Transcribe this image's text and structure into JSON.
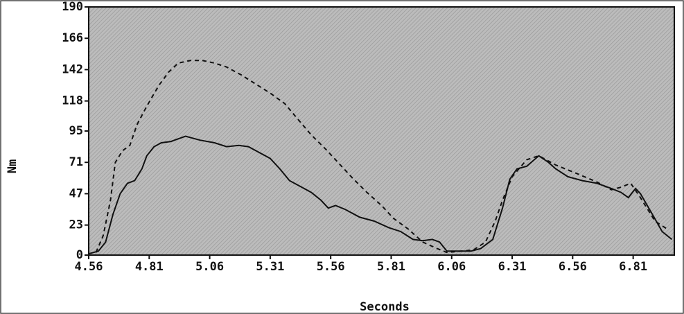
{
  "chart_data": {
    "type": "line",
    "xlabel": "Seconds",
    "ylabel": "Nm",
    "xlim": [
      4.56,
      6.98
    ],
    "xticks": [
      4.56,
      4.81,
      5.06,
      5.31,
      5.56,
      5.81,
      6.06,
      6.31,
      6.56,
      6.81
    ],
    "ylim": [
      0,
      190
    ],
    "yticks": [
      0,
      23,
      47,
      71,
      95,
      118,
      142,
      166,
      190
    ],
    "series": [
      {
        "color": "#111111",
        "dash": false,
        "x": [
          4.56,
          4.6,
          4.63,
          4.66,
          4.69,
          4.72,
          4.75,
          4.78,
          4.8,
          4.83,
          4.86,
          4.9,
          4.96,
          5.02,
          5.08,
          5.13,
          5.18,
          5.22,
          5.26,
          5.31,
          5.35,
          5.39,
          5.44,
          5.48,
          5.52,
          5.55,
          5.58,
          5.62,
          5.68,
          5.74,
          5.8,
          5.85,
          5.9,
          5.94,
          5.98,
          6.01,
          6.04,
          6.08,
          6.14,
          6.18,
          6.23,
          6.27,
          6.3,
          6.33,
          6.37,
          6.42,
          6.46,
          6.49,
          6.54,
          6.6,
          6.66,
          6.72,
          6.76,
          6.79,
          6.82,
          6.84,
          6.89,
          6.93,
          6.97
        ],
        "values": [
          1,
          3,
          10,
          31,
          47,
          55,
          57,
          66,
          76,
          83,
          86,
          87,
          91,
          88,
          86,
          83,
          84,
          83,
          79,
          74,
          66,
          57,
          52,
          48,
          42,
          36,
          38,
          35,
          29,
          26,
          21,
          18,
          12,
          11,
          12,
          10,
          3,
          3,
          3,
          5,
          12,
          36,
          58,
          66,
          68,
          76,
          71,
          66,
          60,
          57,
          55,
          51,
          48,
          44,
          51,
          47,
          31,
          18,
          12
        ]
      },
      {
        "color": "#111111",
        "dash": true,
        "x": [
          4.59,
          4.62,
          4.65,
          4.67,
          4.7,
          4.73,
          4.76,
          4.8,
          4.85,
          4.89,
          4.93,
          4.98,
          5.03,
          5.08,
          5.13,
          5.19,
          5.25,
          5.31,
          5.37,
          5.42,
          5.48,
          5.54,
          5.59,
          5.65,
          5.71,
          5.77,
          5.82,
          5.88,
          5.94,
          6.0,
          6.04,
          6.1,
          6.15,
          6.2,
          6.24,
          6.27,
          6.31,
          6.37,
          6.42,
          6.49,
          6.57,
          6.66,
          6.72,
          6.76,
          6.8,
          6.84,
          6.9,
          6.95
        ],
        "values": [
          2,
          15,
          42,
          71,
          80,
          84,
          100,
          114,
          130,
          140,
          147,
          149,
          149,
          147,
          144,
          138,
          131,
          124,
          116,
          105,
          92,
          81,
          71,
          59,
          48,
          38,
          28,
          20,
          10,
          5,
          2,
          3,
          4,
          10,
          26,
          42,
          60,
          73,
          76,
          69,
          63,
          56,
          50,
          52,
          55,
          44,
          26,
          20
        ]
      }
    ]
  }
}
